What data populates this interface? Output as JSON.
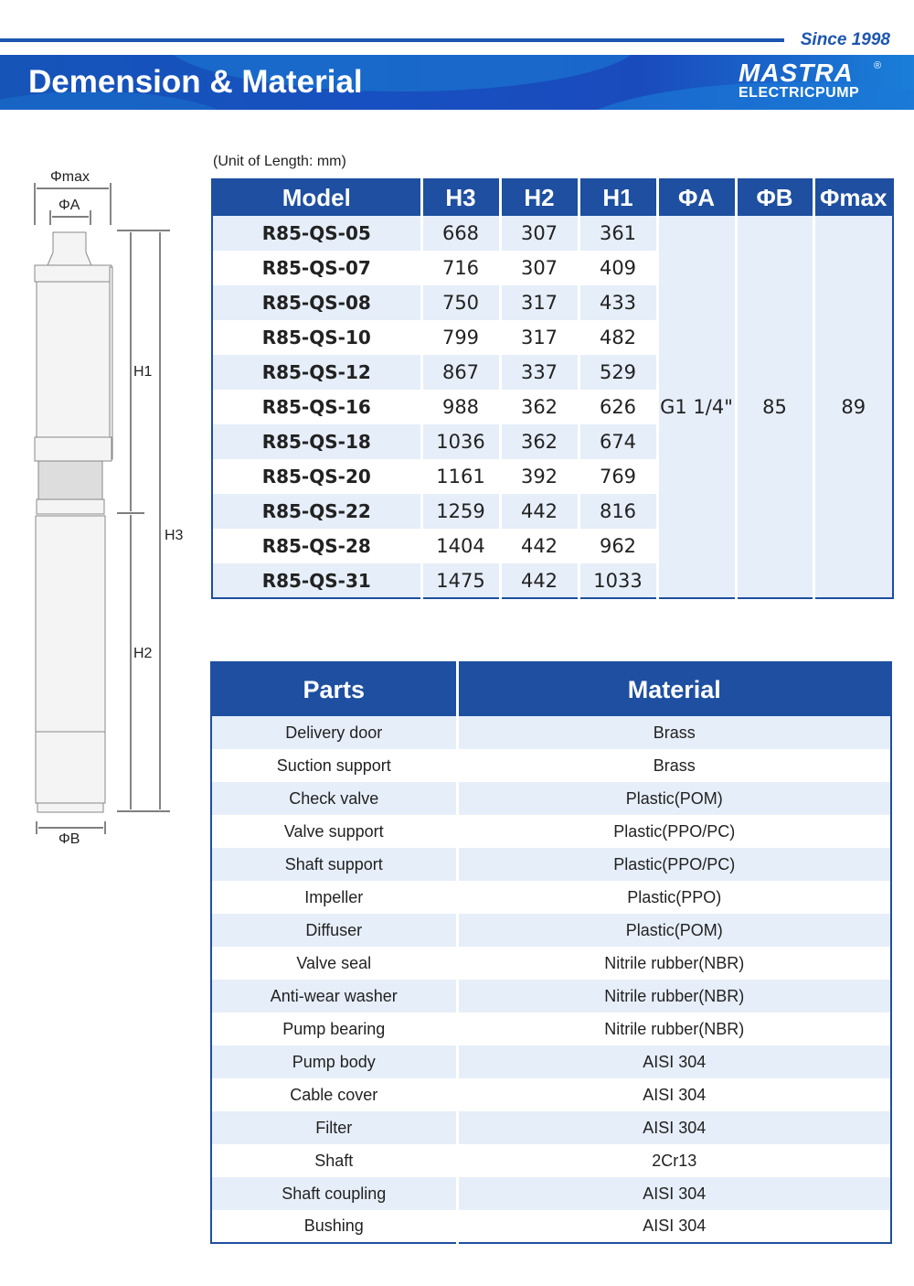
{
  "header": {
    "since": "Since 1998",
    "title": "Demension & Material",
    "logo_mark": "MASTRA",
    "logo_sub": "ELECTRICPUMP",
    "registered": "®",
    "brand_color": "#1e4fa0"
  },
  "diagram": {
    "phi_max": "Φmax",
    "phi_a": "ΦA",
    "phi_b": "ΦB",
    "h1": "H1",
    "h2": "H2",
    "h3": "H3"
  },
  "dimensions": {
    "unit": "(Unit of Length: mm)",
    "headers": [
      "Model",
      "H3",
      "H2",
      "H1",
      "ΦA",
      "ΦB",
      "Φmax"
    ],
    "rows": [
      [
        "R85-QS-05",
        "668",
        "307",
        "361"
      ],
      [
        "R85-QS-07",
        "716",
        "307",
        "409"
      ],
      [
        "R85-QS-08",
        "750",
        "317",
        "433"
      ],
      [
        "R85-QS-10",
        "799",
        "317",
        "482"
      ],
      [
        "R85-QS-12",
        "867",
        "337",
        "529"
      ],
      [
        "R85-QS-16",
        "988",
        "362",
        "626"
      ],
      [
        "R85-QS-18",
        "1036",
        "362",
        "674"
      ],
      [
        "R85-QS-20",
        "1161",
        "392",
        "769"
      ],
      [
        "R85-QS-22",
        "1259",
        "442",
        "816"
      ],
      [
        "R85-QS-28",
        "1404",
        "442",
        "962"
      ],
      [
        "R85-QS-31",
        "1475",
        "442",
        "1033"
      ]
    ],
    "phi_a": "G1 1/4\"",
    "phi_b": "85",
    "phi_max": "89"
  },
  "materials": {
    "headers": [
      "Parts",
      "Material"
    ],
    "rows": [
      [
        "Delivery door",
        "Brass"
      ],
      [
        "Suction support",
        "Brass"
      ],
      [
        "Check valve",
        "Plastic(POM)"
      ],
      [
        "Valve support",
        "Plastic(PPO/PC)"
      ],
      [
        "Shaft support",
        "Plastic(PPO/PC)"
      ],
      [
        "Impeller",
        "Plastic(PPO)"
      ],
      [
        "Diffuser",
        "Plastic(POM)"
      ],
      [
        "Valve seal",
        "Nitrile rubber(NBR)"
      ],
      [
        "Anti-wear washer",
        "Nitrile rubber(NBR)"
      ],
      [
        "Pump bearing",
        "Nitrile rubber(NBR)"
      ],
      [
        "Pump body",
        "AISI 304"
      ],
      [
        "Cable cover",
        "AISI 304"
      ],
      [
        "Filter",
        "AISI 304"
      ],
      [
        "Shaft",
        "2Cr13"
      ],
      [
        "Shaft coupling",
        "AISI 304"
      ],
      [
        "Bushing",
        "AISI 304"
      ]
    ]
  }
}
